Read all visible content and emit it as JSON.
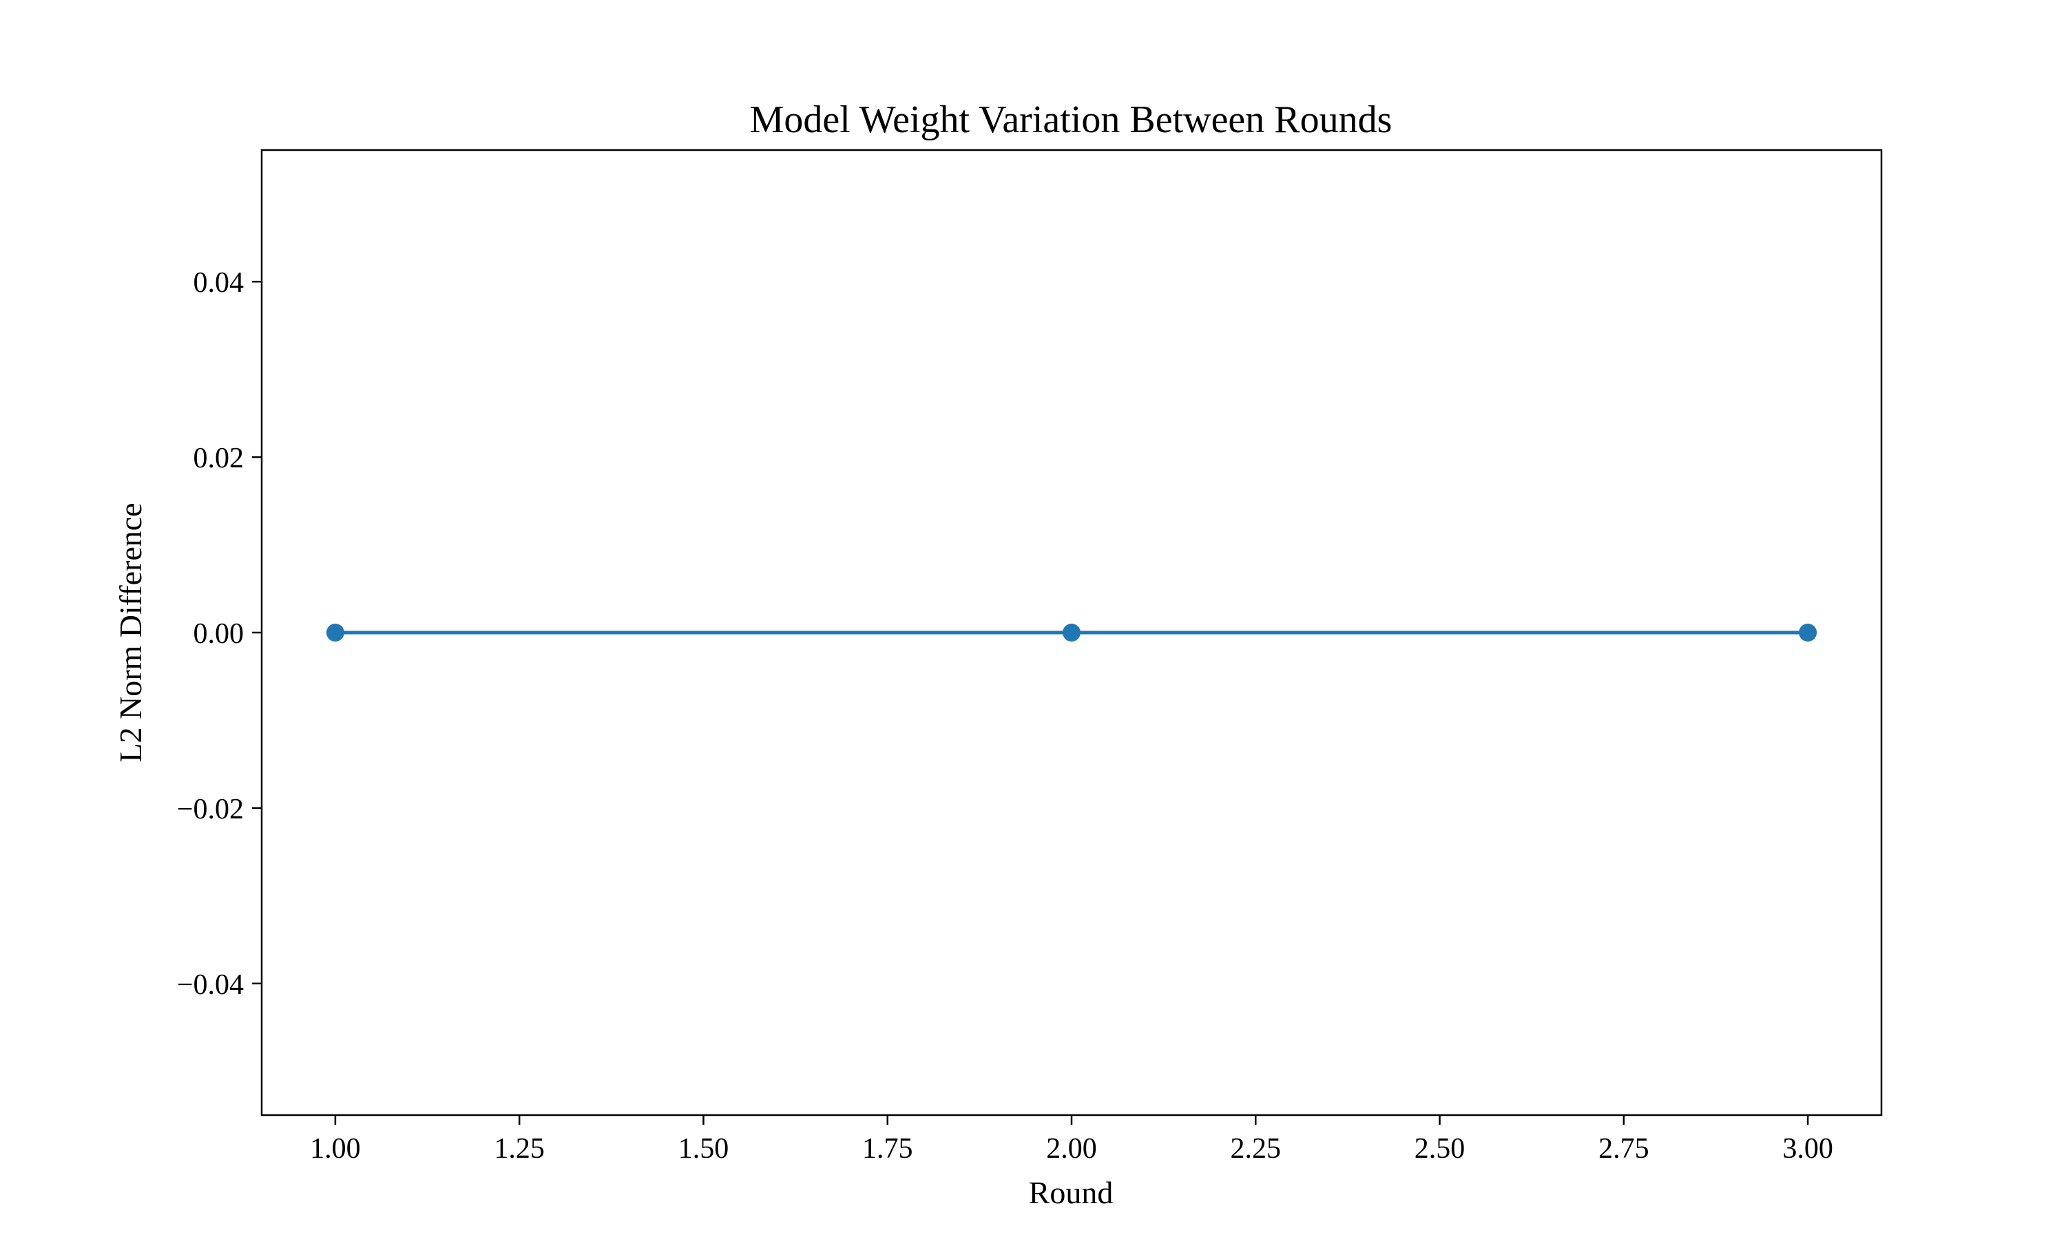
{
  "chart_data": {
    "type": "line",
    "title": "Model Weight Variation Between Rounds",
    "xlabel": "Round",
    "ylabel": "L2 Norm Difference",
    "xlim": [
      0.9,
      3.1
    ],
    "ylim": [
      -0.055,
      0.055
    ],
    "x_ticks": [
      1.0,
      1.25,
      1.5,
      1.75,
      2.0,
      2.25,
      2.5,
      2.75,
      3.0
    ],
    "x_tick_labels": [
      "1.00",
      "1.25",
      "1.50",
      "1.75",
      "2.00",
      "2.25",
      "2.50",
      "2.75",
      "3.00"
    ],
    "y_ticks": [
      0.04,
      0.02,
      0.0,
      -0.02,
      -0.04
    ],
    "y_tick_labels": [
      "0.04",
      "0.02",
      "0.00",
      "−0.02",
      "−0.04"
    ],
    "grid": false,
    "legend": "none",
    "series": [
      {
        "x": [
          1,
          2,
          3
        ],
        "y": [
          0.0,
          0.0,
          0.0
        ],
        "color": "#1f77b4",
        "marker": "circle"
      }
    ]
  }
}
